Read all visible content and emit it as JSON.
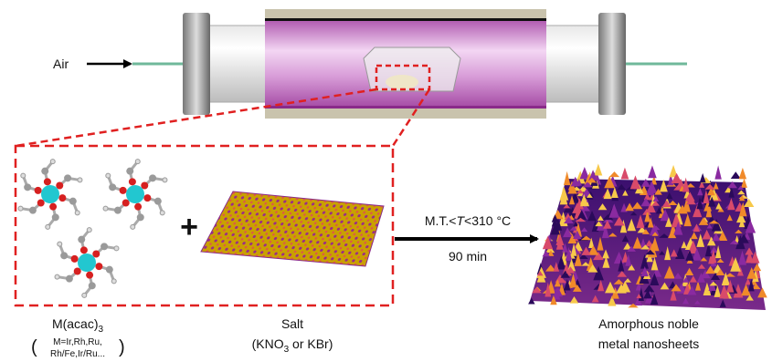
{
  "air": "Air",
  "plus": "+",
  "condition": {
    "prefix": "M.T.<",
    "italic": "T",
    "suffix": "<310 °C"
  },
  "time": "90 min",
  "precursor": {
    "name": "M(acac)",
    "subscript": "3",
    "note_open": "(",
    "note_line1": "M=Ir,Rh,Ru,",
    "note_line2": "Rh/Fe,Ir/Ru...",
    "note_close": ")"
  },
  "salt": {
    "name": "Salt",
    "formula_open": "(KNO",
    "formula_subscript": "3",
    "formula_rest": " or KBr)"
  },
  "product": {
    "line1": "Amorphous noble",
    "line2": "metal nanosheets"
  }
}
